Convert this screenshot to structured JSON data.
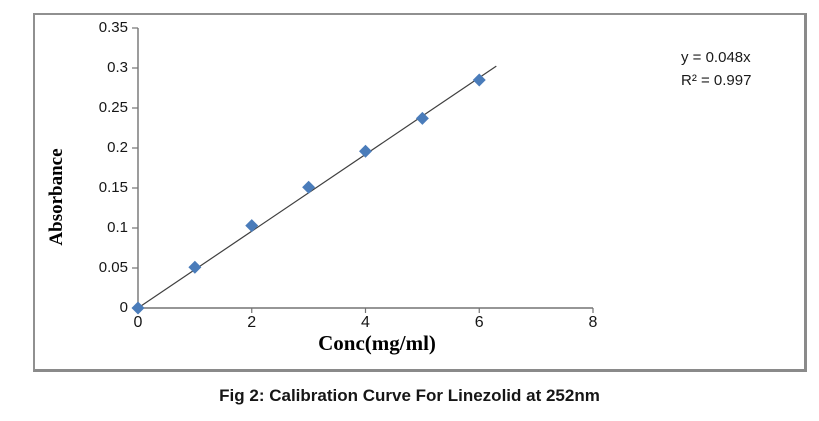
{
  "figure": {
    "caption": "Fig 2: Calibration Curve For Linezolid at 252nm"
  },
  "chart_data": {
    "type": "scatter",
    "title": "",
    "xlabel": "Conc(mg/ml)",
    "ylabel": "Absorbance",
    "x": [
      0,
      1,
      2,
      3,
      4,
      5,
      6
    ],
    "y": [
      0,
      0.051,
      0.103,
      0.151,
      0.196,
      0.237,
      0.285
    ],
    "xlim": [
      0,
      8
    ],
    "ylim": [
      0,
      0.35
    ],
    "x_ticks": [
      0,
      2,
      4,
      6,
      8
    ],
    "x_tick_labels": [
      "0",
      "2",
      "4",
      "6",
      "8"
    ],
    "y_ticks": [
      0,
      0.05,
      0.1,
      0.15,
      0.2,
      0.25,
      0.3,
      0.35
    ],
    "y_tick_labels": [
      "0",
      "0.05",
      "0.1",
      "0.15",
      "0.2",
      "0.25",
      "0.3",
      "0.35"
    ],
    "grid": false,
    "legend": null,
    "trendline": {
      "slope": 0.048,
      "intercept": 0,
      "x_start": 0,
      "x_end": 6.3
    },
    "annotation": {
      "line1": "y = 0.048x",
      "line2": "R² = 0.997"
    },
    "marker_color": "#4a7cba",
    "line_color": "#3f3f3f",
    "axis_color": "#737373"
  }
}
